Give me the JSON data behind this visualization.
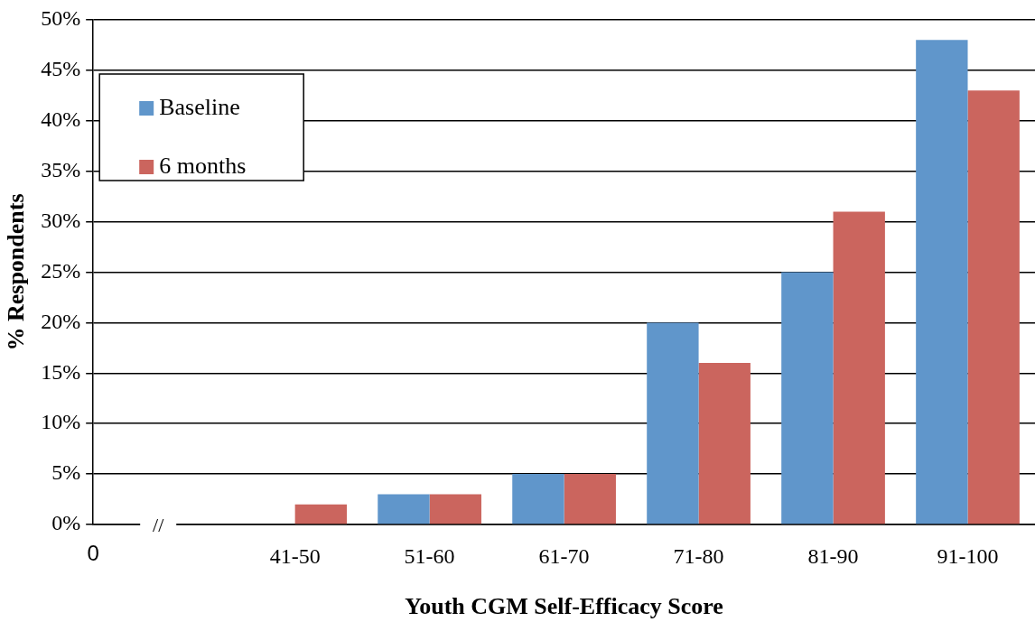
{
  "chart_data": {
    "type": "bar",
    "xlabel": "Youth CGM Self-Efficacy Score",
    "ylabel": "% Respondents",
    "categories": [
      null,
      "41-50",
      "51-60",
      "61-70",
      "71-80",
      "81-90",
      "91-100"
    ],
    "series": [
      {
        "name": "Baseline",
        "color": "#6096cb",
        "values": [
          null,
          0,
          3,
          5,
          20,
          25,
          48
        ]
      },
      {
        "name": "6 months",
        "color": "#cb655e",
        "values": [
          null,
          2,
          3,
          5,
          16,
          31,
          43
        ]
      }
    ],
    "ylim": [
      0,
      50
    ],
    "yticks": [
      {
        "value": 0,
        "label": "0%"
      },
      {
        "value": 5,
        "label": "5%"
      },
      {
        "value": 10,
        "label": "10%"
      },
      {
        "value": 15,
        "label": "15%"
      },
      {
        "value": 20,
        "label": "20%"
      },
      {
        "value": 25,
        "label": "25%"
      },
      {
        "value": 30,
        "label": "30%"
      },
      {
        "value": 35,
        "label": "35%"
      },
      {
        "value": 40,
        "label": "40%"
      },
      {
        "value": 45,
        "label": "45%"
      },
      {
        "value": 50,
        "label": "50%"
      }
    ],
    "grid": "y",
    "legend": "top left",
    "annotations": [
      "0",
      "//"
    ]
  }
}
